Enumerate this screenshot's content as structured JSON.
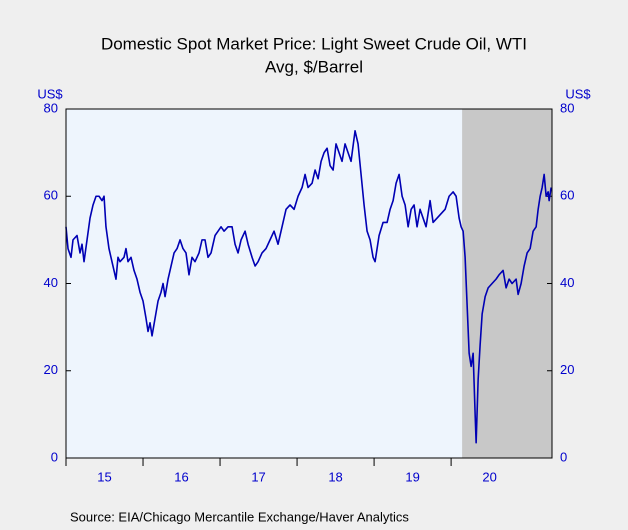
{
  "chart_data": {
    "type": "line",
    "title": [
      "Domestic Spot Market Price: Light Sweet Crude Oil, WTI",
      "Avg, $/Barrel"
    ],
    "ylabel": "US$",
    "y2label": "US$",
    "source": "Source:  EIA/Chicago Mercantile Exchange/Haver Analytics",
    "xlim": [
      2015,
      2021.31
    ],
    "xticks": [
      {
        "value": 2015,
        "label": "15"
      },
      {
        "value": 2016,
        "label": "16"
      },
      {
        "value": 2017,
        "label": "17"
      },
      {
        "value": 2018,
        "label": "18"
      },
      {
        "value": 2019,
        "label": "19"
      },
      {
        "value": 2020,
        "label": "20"
      }
    ],
    "ylim": [
      0,
      80
    ],
    "yticks": [
      0,
      20,
      40,
      60,
      80
    ],
    "y2lim": [
      0,
      80
    ],
    "y2ticks": [
      0,
      20,
      40,
      60,
      80
    ],
    "shaded_region": [
      2020.143,
      2021.31
    ],
    "shade_color": "#c8c8c8",
    "x": [
      2015.0,
      2015.026,
      2015.065,
      2015.091,
      2015.143,
      2015.182,
      2015.208,
      2015.234,
      2015.273,
      2015.312,
      2015.351,
      2015.39,
      2015.429,
      2015.468,
      2015.494,
      2015.519,
      2015.558,
      2015.61,
      2015.649,
      2015.675,
      2015.701,
      2015.753,
      2015.779,
      2015.805,
      2015.844,
      2015.883,
      2015.922,
      2015.961,
      2016.0,
      2016.039,
      2016.065,
      2016.091,
      2016.117,
      2016.156,
      2016.195,
      2016.234,
      2016.26,
      2016.286,
      2016.325,
      2016.364,
      2016.403,
      2016.442,
      2016.481,
      2016.519,
      2016.558,
      2016.597,
      2016.636,
      2016.675,
      2016.727,
      2016.766,
      2016.805,
      2016.844,
      2016.883,
      2016.935,
      2016.974,
      2017.013,
      2017.052,
      2017.104,
      2017.156,
      2017.195,
      2017.234,
      2017.273,
      2017.325,
      2017.364,
      2017.416,
      2017.455,
      2017.494,
      2017.545,
      2017.597,
      2017.649,
      2017.701,
      2017.753,
      2017.805,
      2017.857,
      2017.909,
      2017.961,
      2018.013,
      2018.065,
      2018.104,
      2018.143,
      2018.195,
      2018.234,
      2018.273,
      2018.312,
      2018.351,
      2018.39,
      2018.429,
      2018.468,
      2018.506,
      2018.545,
      2018.584,
      2018.623,
      2018.662,
      2018.701,
      2018.753,
      2018.792,
      2018.831,
      2018.87,
      2018.909,
      2018.948,
      2018.987,
      2019.013,
      2019.065,
      2019.117,
      2019.169,
      2019.208,
      2019.247,
      2019.286,
      2019.325,
      2019.364,
      2019.403,
      2019.442,
      2019.481,
      2019.519,
      2019.558,
      2019.597,
      2019.636,
      2019.675,
      2019.727,
      2019.766,
      2019.818,
      2019.87,
      2019.922,
      2019.974,
      2020.026,
      2020.065,
      2020.104,
      2020.13,
      2020.156,
      2020.182,
      2020.208,
      2020.234,
      2020.26,
      2020.286,
      2020.312,
      2020.325,
      2020.351,
      2020.377,
      2020.403,
      2020.442,
      2020.481,
      2020.532,
      2020.584,
      2020.623,
      2020.675,
      2020.714,
      2020.753,
      2020.792,
      2020.844,
      2020.87,
      2020.909,
      2020.948,
      2020.987,
      2021.026,
      2021.065,
      2021.104,
      2021.13,
      2021.156,
      2021.182,
      2021.208,
      2021.234,
      2021.26,
      2021.273,
      2021.299
    ],
    "series": [
      {
        "name": "WTI",
        "color": "#0000b4",
        "axis": "y",
        "values": [
          53,
          48,
          46,
          50,
          51,
          47,
          49,
          45,
          50,
          55,
          58,
          60,
          60,
          59,
          60,
          53,
          48,
          44,
          41,
          46,
          45,
          46,
          48,
          45,
          46,
          43,
          41,
          38,
          36,
          32,
          29,
          31,
          28,
          32,
          36,
          38,
          40,
          37,
          41,
          44,
          47,
          48,
          50,
          48,
          47,
          42,
          46,
          45,
          47,
          50,
          50,
          46,
          47,
          51,
          52,
          53,
          52,
          53,
          53,
          49,
          47,
          50,
          52,
          49,
          46,
          44,
          45,
          47,
          48,
          50,
          52,
          49,
          53,
          57,
          58,
          57,
          60,
          62,
          65,
          62,
          63,
          66,
          64,
          68,
          70,
          71,
          67,
          66,
          72,
          70,
          68,
          72,
          70,
          68,
          75,
          72,
          65,
          58,
          52,
          50,
          46,
          45,
          51,
          54,
          54,
          57,
          59,
          63,
          65,
          60,
          58,
          53,
          57,
          58,
          53,
          57,
          55,
          53,
          59,
          54,
          55,
          56,
          57,
          60,
          61,
          60,
          55,
          53,
          52,
          46,
          35,
          24,
          21,
          24,
          10,
          3.5,
          18,
          26,
          33,
          37,
          39,
          40,
          41,
          42,
          43,
          39,
          41,
          40,
          41,
          37.5,
          40,
          44,
          47,
          48,
          52,
          53,
          57,
          60,
          62,
          65,
          60,
          61,
          59,
          62
        ]
      }
    ]
  }
}
